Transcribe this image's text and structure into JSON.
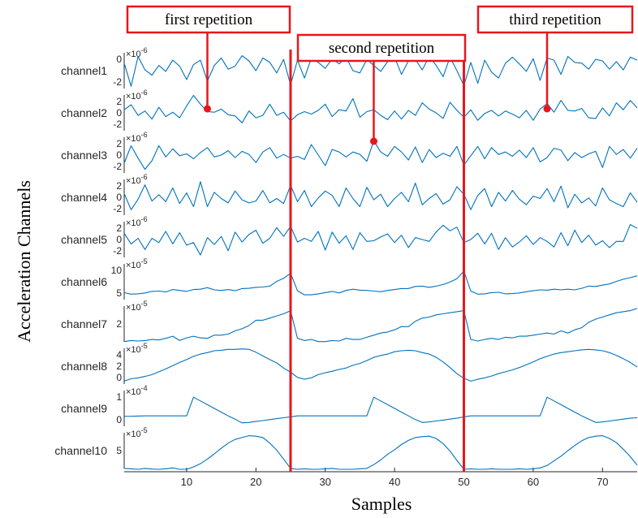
{
  "chart_data": {
    "type": "line",
    "xlabel": "Samples",
    "ylabel": "Acceleration Channels",
    "xlim": [
      1,
      75
    ],
    "xticks": [
      10,
      20,
      30,
      40,
      50,
      60,
      70
    ],
    "line_color": "#0072bd",
    "marker_color": "#e8161c",
    "repetition_boundaries": [
      25,
      50
    ],
    "annotations": [
      {
        "text": "first repetition",
        "point_x": 13
      },
      {
        "text": "second repetition",
        "point_x": 37
      },
      {
        "text": "third repetition",
        "point_x": 62
      }
    ],
    "channels": [
      {
        "name": "channel1",
        "multiplier": "×10-6",
        "ticks": [
          "0",
          "-2"
        ],
        "ylim": [
          -3,
          2
        ],
        "values": [
          0.5,
          -2.6,
          1.4,
          -0.4,
          -1.1,
          0.2,
          -0.6,
          0.9,
          0.1,
          -1.7,
          0.3,
          0.9,
          -1.9,
          0.2,
          1.2,
          -0.3,
          0.1,
          1.5,
          0.8,
          -0.5,
          1.2,
          0.6,
          -0.8,
          1.0,
          -2.4,
          0.9,
          -1.5,
          1.2,
          0.6,
          -0.2,
          1.1,
          0.4,
          1.3,
          -0.5,
          -0.8,
          1.0,
          0.2,
          -0.6,
          0.7,
          1.3,
          -1.0,
          0.8,
          1.0,
          -0.4,
          1.4,
          0.2,
          -1.3,
          1.3,
          -0.5,
          -2.5,
          0.6,
          -2.2,
          0.9,
          -0.7,
          -1.5,
          0.5,
          1.3,
          0.4,
          -0.6,
          1.1,
          -1.8,
          1.2,
          0.9,
          -1.0,
          1.4,
          0.6,
          0.5,
          -0.3,
          1.0,
          0.8,
          -0.3,
          0.7,
          -0.4,
          1.3,
          0.9
        ]
      },
      {
        "name": "channel2",
        "multiplier": "×10-6",
        "ticks": [
          "2",
          "0",
          "-2"
        ],
        "ylim": [
          -3,
          3
        ],
        "values": [
          0.5,
          1.3,
          -0.4,
          0.3,
          -1.0,
          0.9,
          -0.6,
          0.1,
          -0.8,
          1.1,
          2.8,
          1.4,
          0.2,
          0.1,
          0.6,
          -0.3,
          -0.5,
          -1.6,
          0.3,
          -0.8,
          -0.4,
          1.4,
          -0.4,
          0.1,
          -1.3,
          -0.3,
          0.2,
          -0.2,
          0.4,
          1.4,
          -0.6,
          0.5,
          0.3,
          2.3,
          -0.7,
          0.2,
          0.5,
          -0.4,
          -1.1,
          0.3,
          -1.0,
          0.4,
          -0.4,
          1.6,
          0.6,
          0.0,
          -0.9,
          1.7,
          0.4,
          -0.7,
          0.5,
          -1.2,
          -0.1,
          0.4,
          -0.5,
          0.3,
          -0.2,
          -0.8,
          0.4,
          -1.2,
          0.6,
          1.5,
          0.1,
          2.0,
          0.4,
          0.3,
          0.7,
          -0.8,
          -0.9,
          0.8,
          -0.5,
          1.6,
          0.5,
          2.0,
          0.8
        ]
      },
      {
        "name": "channel3",
        "multiplier": "×10-6",
        "ticks": [
          "2",
          "0",
          "-2"
        ],
        "ylim": [
          -3,
          3
        ],
        "values": [
          -1.3,
          1.5,
          -0.5,
          -2.3,
          -0.9,
          1.5,
          -0.3,
          1.0,
          -0.1,
          0.2,
          -0.6,
          0.4,
          1.2,
          -0.3,
          0.0,
          0.7,
          -0.4,
          0.6,
          0.1,
          -1.2,
          0.5,
          1.2,
          -0.5,
          0.1,
          -0.5,
          -0.2,
          -0.7,
          1.7,
          0.0,
          -1.7,
          0.9,
          0.5,
          -0.3,
          0.5,
          0.1,
          -1.0,
          2.3,
          0.5,
          -0.2,
          1.4,
          0.5,
          -0.8,
          1.3,
          -1.2,
          0.9,
          -0.4,
          0.3,
          -0.2,
          1.4,
          -1.6,
          -0.1,
          1.4,
          -0.6,
          1.2,
          0.1,
          0.5,
          -0.2,
          0.8,
          -0.4,
          1.2,
          -1.1,
          -0.4,
          1.1,
          0.8,
          -0.9,
          0.4,
          -0.4,
          0.2,
          0.6,
          -2.0,
          1.4,
          0.1,
          0.9,
          -0.5,
          1.1
        ]
      },
      {
        "name": "channel4",
        "multiplier": "×10-6",
        "ticks": [
          "2",
          "0",
          "-2"
        ],
        "ylim": [
          -3,
          3
        ],
        "values": [
          0.6,
          -2.0,
          -0.3,
          2.0,
          -0.6,
          0.4,
          -0.7,
          1.5,
          -1.0,
          0.7,
          -1.5,
          2.5,
          -1.5,
          0.8,
          -0.2,
          -0.9,
          1.0,
          -0.4,
          -0.9,
          -0.6,
          1.1,
          -0.9,
          -0.2,
          -1.0,
          1.9,
          -0.7,
          1.1,
          -1.5,
          -0.1,
          1.0,
          0.3,
          -1.5,
          1.5,
          -0.2,
          -1.5,
          1.6,
          -0.4,
          0.5,
          -1.5,
          -0.2,
          0.8,
          -0.7,
          2.3,
          -1.2,
          -0.2,
          0.6,
          -1.1,
          -0.4,
          1.7,
          0.5,
          -2.0,
          0.3,
          1.4,
          -1.5,
          0.8,
          -0.6,
          1.1,
          -0.3,
          -1.2,
          0.2,
          -0.2,
          1.4,
          -0.7,
          1.8,
          -1.7,
          0.5,
          -0.9,
          -0.1,
          -1.4,
          1.5,
          -0.4,
          -1.0,
          -1.5,
          0.7,
          -0.8
        ]
      },
      {
        "name": "channel5",
        "multiplier": "×10-6",
        "ticks": [
          "2",
          "0",
          "-2"
        ],
        "ylim": [
          -3,
          3
        ],
        "values": [
          1.0,
          -0.7,
          0.2,
          -1.6,
          0.2,
          -0.5,
          1.3,
          -0.7,
          1.1,
          -0.9,
          -0.5,
          -2.5,
          0.3,
          -0.8,
          0.5,
          -1.8,
          1.2,
          -0.4,
          0.8,
          1.5,
          -0.6,
          0.2,
          1.9,
          0.5,
          2.1,
          -0.4,
          0.2,
          -0.3,
          1.3,
          -1.7,
          1.2,
          -0.6,
          0.6,
          -1.6,
          1.1,
          -0.3,
          -0.2,
          0.4,
          0.9,
          -0.5,
          0.7,
          -1.3,
          0.3,
          0.0,
          -0.3,
          1.2,
          2.3,
          1.4,
          2.0,
          -0.5,
          0.0,
          1.0,
          -0.7,
          1.0,
          -1.6,
          0.3,
          -1.2,
          -0.4,
          0.6,
          -0.8,
          0.3,
          -0.3,
          -1.2,
          1.1,
          -1.0,
          1.5,
          -0.5,
          0.7,
          -0.9,
          -0.2,
          -1.3,
          -0.3,
          -0.3,
          2.4,
          1.8
        ]
      },
      {
        "name": "channel6",
        "multiplier": "×10-5",
        "ticks": [
          "10",
          "5"
        ],
        "ylim": [
          2,
          14
        ],
        "values": [
          4.5,
          4.0,
          4.1,
          4.4,
          4.9,
          5.0,
          4.7,
          5.5,
          5.2,
          4.9,
          5.5,
          5.6,
          6.1,
          5.4,
          5.2,
          5.5,
          5.1,
          5.8,
          5.9,
          6.2,
          6.3,
          6.6,
          8.1,
          9.1,
          10.7,
          5.1,
          3.8,
          3.8,
          4.1,
          4.5,
          4.9,
          4.4,
          5.2,
          5.6,
          5.3,
          5.2,
          5.0,
          4.8,
          5.2,
          5.5,
          5.8,
          5.8,
          6.5,
          6.6,
          6.2,
          6.6,
          7.1,
          7.9,
          9.0,
          11.4,
          5.0,
          4.0,
          4.1,
          4.5,
          4.6,
          4.1,
          4.2,
          4.4,
          4.8,
          5.1,
          5.4,
          5.3,
          5.6,
          5.4,
          5.6,
          5.4,
          5.9,
          6.6,
          6.5,
          6.9,
          7.3,
          8.1,
          8.8,
          9.3,
          9.9
        ]
      },
      {
        "name": "channel7",
        "multiplier": "×10-5",
        "ticks": [
          "2"
        ],
        "ylim": [
          0,
          3.5
        ],
        "values": [
          0.1,
          0.2,
          0.15,
          0.2,
          0.3,
          0.25,
          0.4,
          0.6,
          0.2,
          0.45,
          0.6,
          0.45,
          0.4,
          0.7,
          0.7,
          0.8,
          1.1,
          1.3,
          1.6,
          2.1,
          2.1,
          2.3,
          2.5,
          2.7,
          3.0,
          0.4,
          0.2,
          0.3,
          0.1,
          0.1,
          0.2,
          0.15,
          0.4,
          0.3,
          0.3,
          0.5,
          0.7,
          0.9,
          1.0,
          1.2,
          1.5,
          1.5,
          2.0,
          2.3,
          2.4,
          2.6,
          2.7,
          2.8,
          2.9,
          3.0,
          0.3,
          0.15,
          0.3,
          0.4,
          0.3,
          0.5,
          0.45,
          0.6,
          0.6,
          0.7,
          0.8,
          0.9,
          0.8,
          1.1,
          0.9,
          1.2,
          1.4,
          1.9,
          2.2,
          2.4,
          2.6,
          2.8,
          2.9,
          3.0,
          3.2
        ]
      },
      {
        "name": "channel8",
        "multiplier": "×10-5",
        "ticks": [
          "4",
          "2",
          "0"
        ],
        "ylim": [
          -1,
          7
        ],
        "values": [
          -0.2,
          0.3,
          0.5,
          0.8,
          1.2,
          1.8,
          2.4,
          3.1,
          3.8,
          4.4,
          5.1,
          5.6,
          5.9,
          6.3,
          6.4,
          6.6,
          6.6,
          6.7,
          6.6,
          6.0,
          5.2,
          4.4,
          3.7,
          2.6,
          1.7,
          0.6,
          0.2,
          0.5,
          1.2,
          1.6,
          1.9,
          2.3,
          2.6,
          3.2,
          3.6,
          4.2,
          4.9,
          5.3,
          5.6,
          6.1,
          6.3,
          6.4,
          6.3,
          5.9,
          5.6,
          4.9,
          3.9,
          2.7,
          1.4,
          0.4,
          -0.2,
          0.2,
          0.5,
          0.9,
          1.4,
          1.8,
          2.2,
          2.7,
          3.3,
          3.9,
          4.6,
          5.1,
          5.6,
          5.9,
          6.1,
          6.3,
          6.5,
          6.6,
          6.5,
          6.3,
          5.9,
          5.3,
          4.6,
          3.8,
          2.8
        ]
      },
      {
        "name": "channel9",
        "multiplier": "×10-4",
        "ticks": [
          "1",
          "0"
        ],
        "ylim": [
          -1.2,
          2.8
        ],
        "values": [
          -0.05,
          -0.04,
          -0.02,
          0.0,
          0.0,
          0.0,
          0.0,
          0.0,
          0.0,
          0.0,
          2.0,
          1.6,
          1.2,
          0.8,
          0.4,
          0.0,
          -0.35,
          -0.75,
          -0.7,
          -0.6,
          -0.5,
          -0.4,
          -0.3,
          -0.2,
          -0.1,
          0.0,
          0.0,
          0.0,
          0.0,
          0.0,
          0.0,
          0.0,
          0.0,
          0.0,
          0.0,
          0.0,
          2.0,
          1.6,
          1.2,
          0.8,
          0.4,
          0.0,
          -0.4,
          -0.7,
          -0.65,
          -0.55,
          -0.45,
          -0.35,
          -0.25,
          -0.1,
          0.0,
          0.0,
          0.0,
          0.0,
          0.0,
          0.0,
          0.0,
          0.0,
          0.0,
          0.0,
          0.0,
          2.0,
          1.6,
          1.2,
          0.8,
          0.4,
          0.0,
          -0.35,
          -0.7,
          -0.65,
          -0.55,
          -0.45,
          -0.35,
          -0.25,
          -0.2
        ]
      },
      {
        "name": "channel10",
        "multiplier": "×10-5",
        "ticks": [
          "5"
        ],
        "ylim": [
          2,
          10
        ],
        "values": [
          2.2,
          2.1,
          2.0,
          2.2,
          2.05,
          2.0,
          2.1,
          2.3,
          2.0,
          2.0,
          2.5,
          3.2,
          4.2,
          5.3,
          6.5,
          7.6,
          8.4,
          8.8,
          9.2,
          9.1,
          8.8,
          7.6,
          6.1,
          4.2,
          2.2,
          2.0,
          2.1,
          2.0,
          2.0,
          2.1,
          2.2,
          2.0,
          2.0,
          2.0,
          2.1,
          2.2,
          3.0,
          4.0,
          5.2,
          6.2,
          7.3,
          8.2,
          8.8,
          9.0,
          9.1,
          8.6,
          7.5,
          5.9,
          3.9,
          2.0,
          2.1,
          2.0,
          2.0,
          2.1,
          2.0,
          2.0,
          2.0,
          2.1,
          2.0,
          2.1,
          2.3,
          2.8,
          3.8,
          4.8,
          6.0,
          7.1,
          8.1,
          8.8,
          9.1,
          9.2,
          8.6,
          7.7,
          6.3,
          4.7,
          2.9
        ]
      }
    ]
  }
}
